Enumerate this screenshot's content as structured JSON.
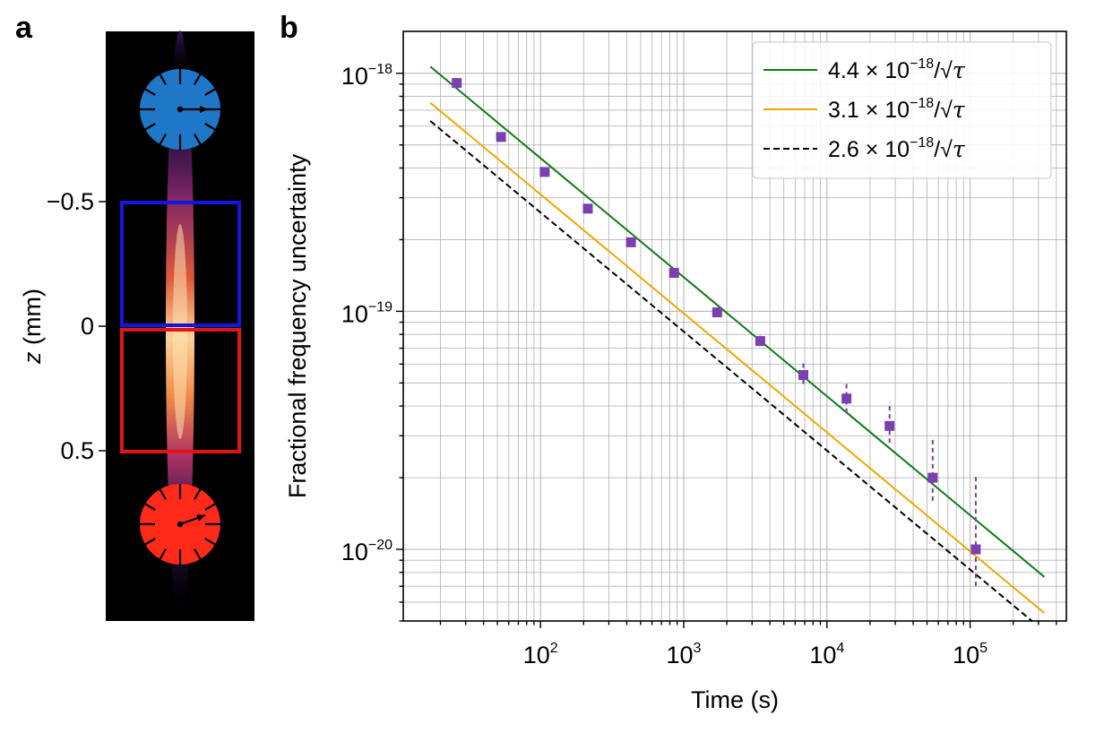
{
  "panel_a": {
    "label": "a",
    "ylabel_italic": "z",
    "ylabel_rest": " (mm)",
    "ticks": [
      {
        "value": -0.5,
        "text": "−0.5"
      },
      {
        "value": 0,
        "text": "0"
      },
      {
        "value": 0.5,
        "text": "0.5"
      }
    ],
    "colors": {
      "background": "#000000",
      "upper_box": "#1515e0",
      "lower_box": "#e01515",
      "upper_clock": "#1f77c8",
      "lower_clock": "#ff2a1a"
    },
    "icons": [
      "clock-icon",
      "clock-icon"
    ]
  },
  "chart_data": {
    "type": "scatter",
    "panel_label": "b",
    "xlabel": "Time (s)",
    "ylabel": "Fractional frequency uncertainty",
    "xscale": "log",
    "yscale": "log",
    "xlim": [
      11,
      470000
    ],
    "ylim": [
      5e-21,
      1.5e-18
    ],
    "grid": true,
    "grid_minor": true,
    "legend_position": "top-right",
    "x_ticks": [
      {
        "value": 100,
        "base": "10",
        "exp": "2"
      },
      {
        "value": 1000,
        "base": "10",
        "exp": "3"
      },
      {
        "value": 10000,
        "base": "10",
        "exp": "4"
      },
      {
        "value": 100000,
        "base": "10",
        "exp": "5"
      }
    ],
    "y_ticks": [
      {
        "value": 1e-20,
        "base": "10",
        "exp": "−20"
      },
      {
        "value": 1e-19,
        "base": "10",
        "exp": "−19"
      },
      {
        "value": 1e-18,
        "base": "10",
        "exp": "−18"
      }
    ],
    "series": [
      {
        "kind": "points",
        "color": "#7b3fb0",
        "marker": "square",
        "errorbar_style": "dashed",
        "x": [
          26,
          53,
          107,
          214,
          428,
          856,
          1712,
          3424,
          6848,
          13696,
          27392,
          54784,
          109568
        ],
        "y": [
          9.1e-19,
          5.4e-19,
          3.85e-19,
          2.7e-19,
          1.95e-19,
          1.45e-19,
          9.9e-20,
          7.5e-20,
          5.4e-20,
          4.3e-20,
          3.3e-20,
          2e-20,
          1e-20
        ],
        "err_low": [
          0,
          0,
          0,
          0,
          0,
          0,
          0,
          3.5e-21,
          4.5e-21,
          5.5e-21,
          5e-21,
          4e-21,
          3e-21
        ],
        "err_high": [
          0,
          0,
          0,
          0,
          0,
          0,
          0,
          4e-21,
          7e-21,
          6.5e-21,
          8.5e-21,
          9e-21,
          1.05e-20
        ]
      },
      {
        "kind": "line",
        "name_coef": "4.4",
        "name_exp": "−18",
        "coef": 4.4e-18,
        "color": "#0f7a1a",
        "dash": "solid",
        "x_range": [
          17,
          330000
        ]
      },
      {
        "kind": "line",
        "name_coef": "3.1",
        "name_exp": "−18",
        "coef": 3.1e-18,
        "color": "#f0a800",
        "dash": "solid",
        "x_range": [
          17,
          330000
        ]
      },
      {
        "kind": "line",
        "name_coef": "2.6",
        "name_exp": "−18",
        "coef": 2.6e-18,
        "color": "#000000",
        "dash": "dashed",
        "x_range": [
          17,
          330000
        ]
      }
    ]
  }
}
